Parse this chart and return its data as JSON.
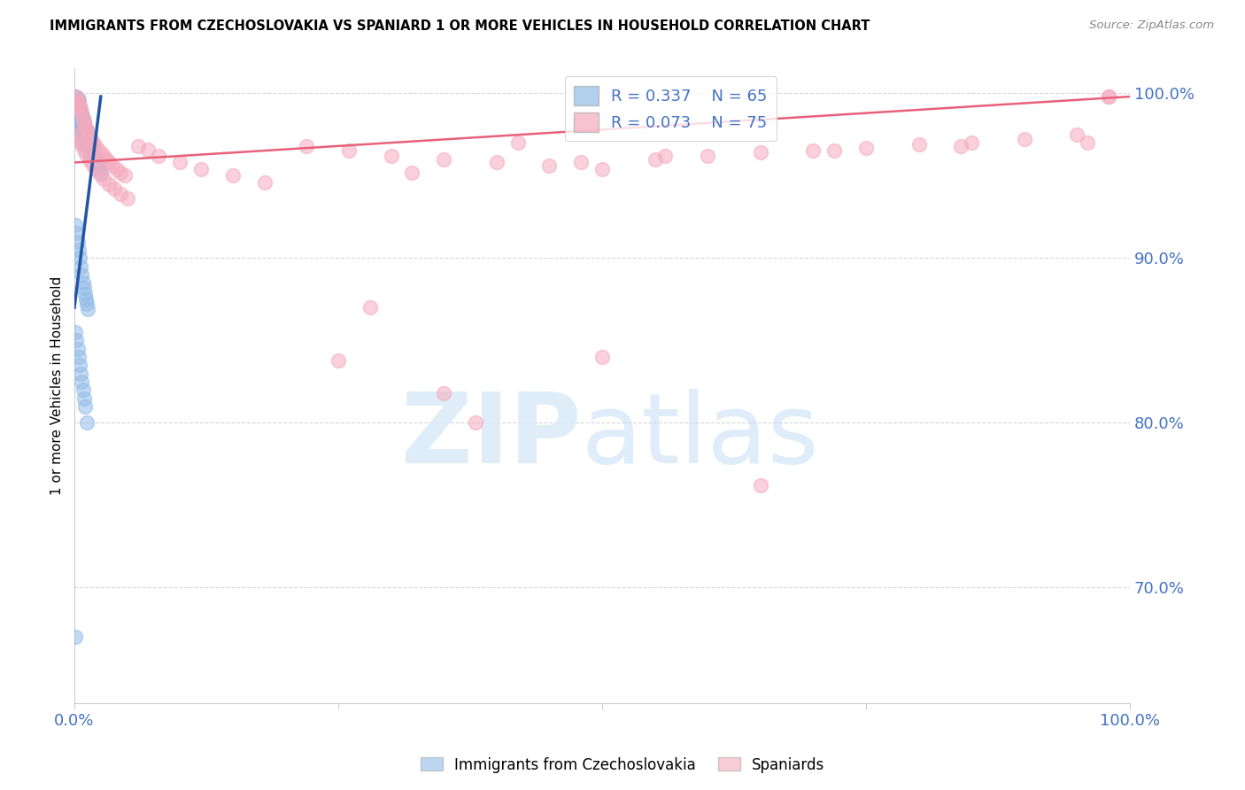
{
  "title": "IMMIGRANTS FROM CZECHOSLOVAKIA VS SPANIARD 1 OR MORE VEHICLES IN HOUSEHOLD CORRELATION CHART",
  "source": "Source: ZipAtlas.com",
  "ylabel": "1 or more Vehicles in Household",
  "xlim": [
    0.0,
    1.0
  ],
  "ylim": [
    0.63,
    1.015
  ],
  "grid_color": "#c8c8c8",
  "background_color": "#ffffff",
  "blue_R": 0.337,
  "blue_N": 65,
  "pink_R": 0.073,
  "pink_N": 75,
  "blue_color": "#92bce8",
  "pink_color": "#f5aabe",
  "blue_line_color": "#2255a4",
  "pink_line_color": "#e8607a",
  "legend_text_color": "#4472c4",
  "axis_text_color": "#4472c4",
  "blue_label": "Immigrants from Czechoslovakia",
  "pink_label": "Spaniards",
  "blue_points_x": [
    0.001,
    0.002,
    0.002,
    0.003,
    0.003,
    0.003,
    0.004,
    0.004,
    0.004,
    0.005,
    0.005,
    0.005,
    0.006,
    0.006,
    0.007,
    0.007,
    0.007,
    0.008,
    0.008,
    0.009,
    0.009,
    0.01,
    0.01,
    0.011,
    0.011,
    0.012,
    0.012,
    0.013,
    0.014,
    0.015,
    0.015,
    0.016,
    0.017,
    0.018,
    0.019,
    0.02,
    0.021,
    0.022,
    0.024,
    0.025,
    0.001,
    0.002,
    0.003,
    0.004,
    0.005,
    0.006,
    0.007,
    0.008,
    0.009,
    0.01,
    0.011,
    0.012,
    0.013,
    0.001,
    0.002,
    0.003,
    0.004,
    0.005,
    0.006,
    0.007,
    0.008,
    0.009,
    0.01,
    0.012,
    0.001
  ],
  "blue_points_y": [
    0.998,
    0.993,
    0.985,
    0.997,
    0.99,
    0.982,
    0.996,
    0.988,
    0.978,
    0.992,
    0.984,
    0.975,
    0.99,
    0.98,
    0.988,
    0.979,
    0.97,
    0.985,
    0.975,
    0.983,
    0.974,
    0.98,
    0.972,
    0.978,
    0.97,
    0.976,
    0.968,
    0.974,
    0.972,
    0.97,
    0.962,
    0.968,
    0.966,
    0.964,
    0.962,
    0.96,
    0.958,
    0.956,
    0.954,
    0.952,
    0.92,
    0.915,
    0.91,
    0.905,
    0.9,
    0.895,
    0.89,
    0.885,
    0.882,
    0.878,
    0.875,
    0.872,
    0.869,
    0.855,
    0.85,
    0.845,
    0.84,
    0.835,
    0.83,
    0.825,
    0.82,
    0.815,
    0.81,
    0.8,
    0.67
  ],
  "pink_points_x": [
    0.002,
    0.003,
    0.004,
    0.005,
    0.006,
    0.007,
    0.008,
    0.009,
    0.01,
    0.012,
    0.014,
    0.016,
    0.018,
    0.02,
    0.022,
    0.025,
    0.028,
    0.03,
    0.033,
    0.036,
    0.04,
    0.044,
    0.048,
    0.003,
    0.005,
    0.007,
    0.009,
    0.011,
    0.014,
    0.017,
    0.02,
    0.024,
    0.028,
    0.033,
    0.038,
    0.044,
    0.05,
    0.06,
    0.07,
    0.08,
    0.1,
    0.12,
    0.15,
    0.18,
    0.22,
    0.26,
    0.3,
    0.35,
    0.4,
    0.45,
    0.5,
    0.55,
    0.6,
    0.65,
    0.7,
    0.75,
    0.8,
    0.85,
    0.9,
    0.95,
    0.98,
    0.25,
    0.35,
    0.5,
    0.28,
    0.38,
    0.65,
    0.42,
    0.32,
    0.48,
    0.56,
    0.72,
    0.84,
    0.96,
    0.98
  ],
  "pink_points_y": [
    0.998,
    0.996,
    0.994,
    0.992,
    0.99,
    0.988,
    0.984,
    0.982,
    0.98,
    0.978,
    0.975,
    0.972,
    0.97,
    0.968,
    0.966,
    0.964,
    0.962,
    0.96,
    0.958,
    0.956,
    0.954,
    0.952,
    0.95,
    0.975,
    0.972,
    0.969,
    0.966,
    0.963,
    0.96,
    0.957,
    0.954,
    0.951,
    0.948,
    0.945,
    0.942,
    0.939,
    0.936,
    0.968,
    0.966,
    0.962,
    0.958,
    0.954,
    0.95,
    0.946,
    0.968,
    0.965,
    0.962,
    0.96,
    0.958,
    0.956,
    0.954,
    0.96,
    0.962,
    0.964,
    0.965,
    0.967,
    0.969,
    0.97,
    0.972,
    0.975,
    0.998,
    0.838,
    0.818,
    0.84,
    0.87,
    0.8,
    0.762,
    0.97,
    0.952,
    0.958,
    0.962,
    0.965,
    0.968,
    0.97,
    0.998
  ],
  "blue_line_x": [
    0.0,
    0.025
  ],
  "blue_line_start_y": 0.87,
  "blue_line_end_y": 0.998,
  "pink_line_x": [
    0.0,
    1.0
  ],
  "pink_line_start_y": 0.958,
  "pink_line_end_y": 0.998
}
